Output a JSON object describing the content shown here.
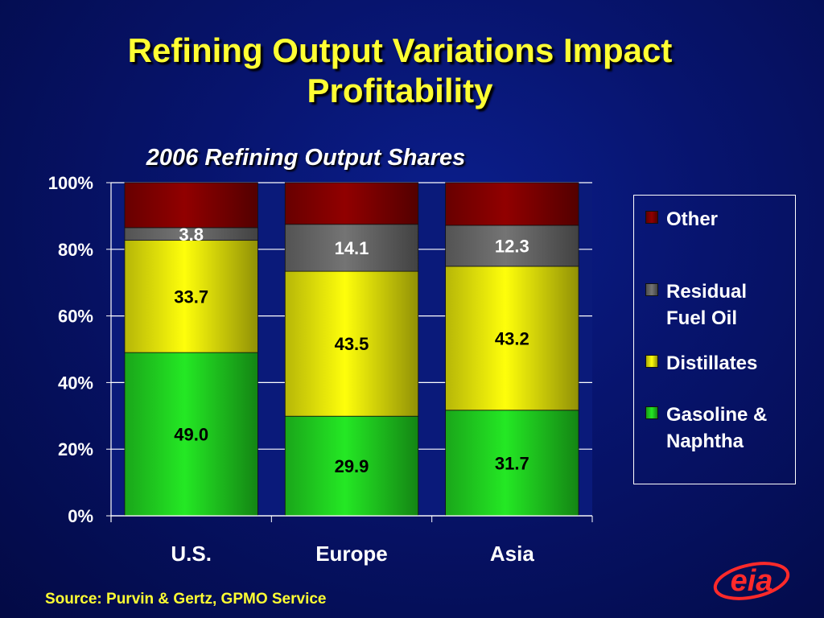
{
  "title": [
    "Refining Output Variations Impact",
    "Profitability"
  ],
  "source": "Source: Purvin & Gertz, GPMO Service",
  "logo_text": "eia",
  "chart_data": {
    "type": "bar",
    "stacked": true,
    "percent_stacked": true,
    "title": "2006 Refining Output Shares",
    "categories": [
      "U.S.",
      "Europe",
      "Asia"
    ],
    "y_ticks": [
      "0%",
      "20%",
      "40%",
      "60%",
      "80%",
      "100%"
    ],
    "ylim": [
      0,
      100
    ],
    "grid": true,
    "legend_position": "right",
    "series": [
      {
        "name": "Gasoline & Naphtha",
        "legend": "Gasoline &\nNaphtha",
        "values": [
          49.0,
          29.9,
          31.7
        ],
        "labels": [
          "49.0",
          "29.9",
          "31.7"
        ],
        "color": "#22dd22"
      },
      {
        "name": "Distillates",
        "legend": "Distillates",
        "values": [
          33.7,
          43.5,
          43.2
        ],
        "labels": [
          "33.7",
          "43.5",
          "43.2"
        ],
        "color": "#f2f20a"
      },
      {
        "name": "Residual Fuel Oil",
        "legend": "Residual\nFuel Oil",
        "values": [
          3.8,
          14.1,
          12.3
        ],
        "labels": [
          "3.8",
          "14.1",
          "12.3"
        ],
        "color": "#6e6e6e"
      },
      {
        "name": "Other",
        "legend": "Other",
        "values": [
          13.5,
          12.5,
          12.8
        ],
        "labels": [
          "",
          "",
          ""
        ],
        "color": "#8a0000"
      }
    ]
  }
}
